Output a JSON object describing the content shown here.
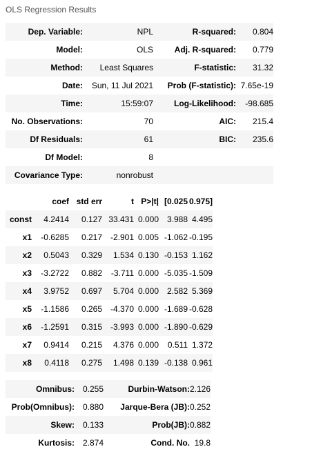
{
  "caption": "OLS Regression Results",
  "summary": {
    "rows": [
      {
        "l1": "Dep. Variable:",
        "v1": "NPL",
        "l2": "R-squared:",
        "v2": "0.804"
      },
      {
        "l1": "Model:",
        "v1": "OLS",
        "l2": "Adj. R-squared:",
        "v2": "0.779"
      },
      {
        "l1": "Method:",
        "v1": "Least Squares",
        "l2": "F-statistic:",
        "v2": "31.32"
      },
      {
        "l1": "Date:",
        "v1": "Sun, 11 Jul 2021",
        "l2": "Prob (F-statistic):",
        "v2": "7.65e-19"
      },
      {
        "l1": "Time:",
        "v1": "15:59:07",
        "l2": "Log-Likelihood:",
        "v2": "-98.685"
      },
      {
        "l1": "No. Observations:",
        "v1": "70",
        "l2": "AIC:",
        "v2": "215.4"
      },
      {
        "l1": "Df Residuals:",
        "v1": "61",
        "l2": "BIC:",
        "v2": "235.6"
      },
      {
        "l1": "Df Model:",
        "v1": "8",
        "l2": "",
        "v2": ""
      },
      {
        "l1": "Covariance Type:",
        "v1": "nonrobust",
        "l2": "",
        "v2": ""
      }
    ]
  },
  "coefficients": {
    "headers": [
      "",
      "coef",
      "std err",
      "t",
      "P>|t|",
      "[0.025",
      "0.975]"
    ],
    "rows": [
      {
        "name": "const",
        "coef": "4.2414",
        "se": "0.127",
        "t": "33.431",
        "p": "0.000",
        "lo": "3.988",
        "hi": "4.495"
      },
      {
        "name": "x1",
        "coef": "-0.6285",
        "se": "0.217",
        "t": "-2.901",
        "p": "0.005",
        "lo": "-1.062",
        "hi": "-0.195"
      },
      {
        "name": "x2",
        "coef": "0.5043",
        "se": "0.329",
        "t": "1.534",
        "p": "0.130",
        "lo": "-0.153",
        "hi": "1.162"
      },
      {
        "name": "x3",
        "coef": "-3.2722",
        "se": "0.882",
        "t": "-3.711",
        "p": "0.000",
        "lo": "-5.035",
        "hi": "-1.509"
      },
      {
        "name": "x4",
        "coef": "3.9752",
        "se": "0.697",
        "t": "5.704",
        "p": "0.000",
        "lo": "2.582",
        "hi": "5.369"
      },
      {
        "name": "x5",
        "coef": "-1.1586",
        "se": "0.265",
        "t": "-4.370",
        "p": "0.000",
        "lo": "-1.689",
        "hi": "-0.628"
      },
      {
        "name": "x6",
        "coef": "-1.2591",
        "se": "0.315",
        "t": "-3.993",
        "p": "0.000",
        "lo": "-1.890",
        "hi": "-0.629"
      },
      {
        "name": "x7",
        "coef": "0.9414",
        "se": "0.215",
        "t": "4.376",
        "p": "0.000",
        "lo": "0.511",
        "hi": "1.372"
      },
      {
        "name": "x8",
        "coef": "0.4118",
        "se": "0.275",
        "t": "1.498",
        "p": "0.139",
        "lo": "-0.138",
        "hi": "0.961"
      }
    ]
  },
  "diagnostics": {
    "rows": [
      {
        "l1": "Omnibus:",
        "v1": "0.255",
        "l2": "Durbin-Watson:",
        "v2": "2.126"
      },
      {
        "l1": "Prob(Omnibus):",
        "v1": "0.880",
        "l2": "Jarque-Bera (JB):",
        "v2": "0.252"
      },
      {
        "l1": "Skew:",
        "v1": "0.133",
        "l2": "Prob(JB):",
        "v2": "0.882"
      },
      {
        "l1": "Kurtosis:",
        "v1": "2.874",
        "l2": "Cond. No.",
        "v2": "19.8"
      }
    ]
  }
}
